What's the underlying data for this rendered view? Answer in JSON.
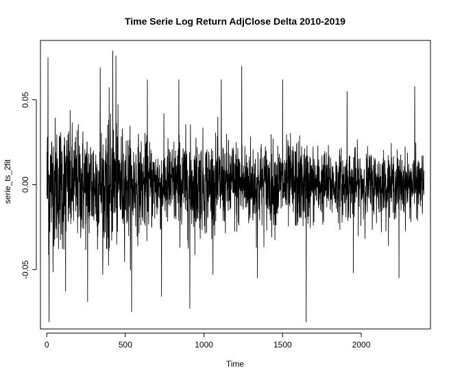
{
  "chart_data": {
    "type": "line",
    "title": "Time Serie Log Return AdjClose Delta 2010-2019",
    "xlabel": "Time",
    "ylabel": "serie_ts_2fit",
    "xlim": [
      -40,
      2440
    ],
    "ylim": [
      -0.085,
      0.085
    ],
    "x_ticks": [
      0,
      500,
      1000,
      1500,
      2000
    ],
    "x_tick_labels": [
      "0",
      "500",
      "1000",
      "1500",
      "2000"
    ],
    "y_ticks": [
      -0.05,
      0.0,
      0.05
    ],
    "y_tick_labels": [
      "-0.05",
      "0.00",
      "0.05"
    ],
    "grid": false,
    "n_points": 2400,
    "line_color": "#000000",
    "series": [
      {
        "x_start": 1,
        "x_end": 2400,
        "envelope_x": [
          0,
          100,
          200,
          300,
          400,
          500,
          600,
          700,
          800,
          900,
          1000,
          1100,
          1200,
          1300,
          1400,
          1500,
          1600,
          1700,
          1800,
          1900,
          2000,
          2100,
          2200,
          2300,
          2400
        ],
        "envelope_volatility": [
          0.026,
          0.024,
          0.021,
          0.022,
          0.024,
          0.02,
          0.017,
          0.016,
          0.017,
          0.019,
          0.018,
          0.016,
          0.017,
          0.017,
          0.016,
          0.016,
          0.017,
          0.014,
          0.013,
          0.013,
          0.013,
          0.013,
          0.012,
          0.012,
          0.011
        ],
        "spikes": [
          {
            "x": 8,
            "y": 0.075
          },
          {
            "x": 15,
            "y": -0.081
          },
          {
            "x": 120,
            "y": -0.063
          },
          {
            "x": 260,
            "y": -0.069
          },
          {
            "x": 340,
            "y": 0.069
          },
          {
            "x": 420,
            "y": 0.079
          },
          {
            "x": 440,
            "y": 0.076
          },
          {
            "x": 540,
            "y": -0.075
          },
          {
            "x": 640,
            "y": 0.062
          },
          {
            "x": 730,
            "y": -0.066
          },
          {
            "x": 840,
            "y": 0.062
          },
          {
            "x": 910,
            "y": -0.073
          },
          {
            "x": 1110,
            "y": 0.062
          },
          {
            "x": 1240,
            "y": 0.07
          },
          {
            "x": 1340,
            "y": -0.055
          },
          {
            "x": 1500,
            "y": 0.062
          },
          {
            "x": 1650,
            "y": -0.081
          },
          {
            "x": 1910,
            "y": 0.055
          },
          {
            "x": 1950,
            "y": -0.052
          },
          {
            "x": 2240,
            "y": -0.055
          },
          {
            "x": 2340,
            "y": 0.058
          }
        ]
      }
    ]
  }
}
